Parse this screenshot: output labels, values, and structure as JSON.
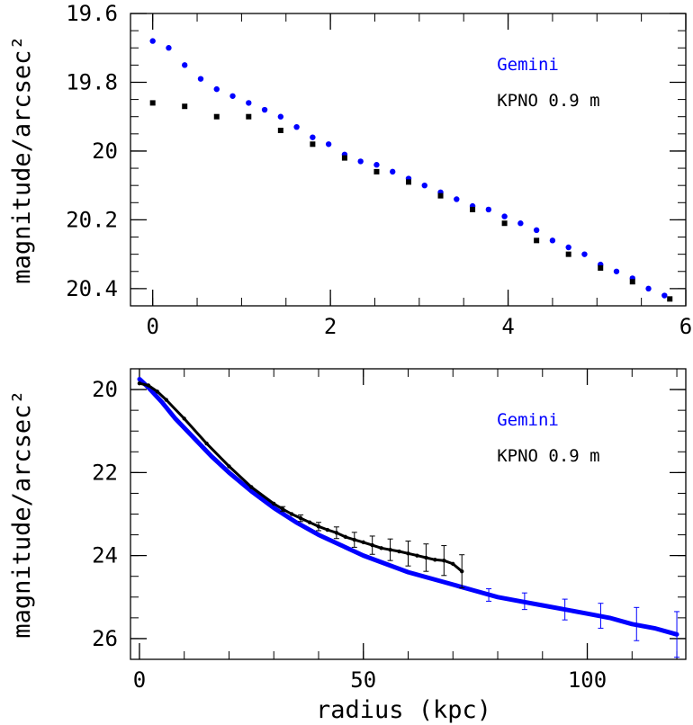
{
  "chart_data": [
    {
      "type": "scatter",
      "title": "",
      "xlabel": "",
      "ylabel": "magnitude/arcsec²",
      "xlim": [
        -0.25,
        6
      ],
      "ylim": [
        19.6,
        20.45
      ],
      "y_inverted": true,
      "x_ticks": [
        "0",
        "2",
        "4",
        "6"
      ],
      "y_ticks": [
        "19.6",
        "19.8",
        "20",
        "20.2",
        "20.4"
      ],
      "grid": false,
      "legend_placement": "top-right",
      "series": [
        {
          "name": "Gemini",
          "color": "#0000ff",
          "marker": "circle",
          "x": [
            0.0,
            0.18,
            0.36,
            0.54,
            0.72,
            0.9,
            1.08,
            1.26,
            1.44,
            1.62,
            1.8,
            1.98,
            2.16,
            2.34,
            2.52,
            2.7,
            2.88,
            3.06,
            3.24,
            3.42,
            3.6,
            3.78,
            3.96,
            4.14,
            4.32,
            4.5,
            4.68,
            4.86,
            5.04,
            5.22,
            5.4,
            5.58,
            5.76
          ],
          "y": [
            19.68,
            19.7,
            19.75,
            19.79,
            19.82,
            19.84,
            19.86,
            19.88,
            19.9,
            19.93,
            19.96,
            19.98,
            20.01,
            20.03,
            20.04,
            20.06,
            20.08,
            20.1,
            20.12,
            20.14,
            20.16,
            20.17,
            20.19,
            20.21,
            20.23,
            20.26,
            20.28,
            20.3,
            20.33,
            20.35,
            20.37,
            20.4,
            20.42
          ]
        },
        {
          "name": "KPNO 0.9 m",
          "color": "#000000",
          "marker": "square",
          "x": [
            0.0,
            0.36,
            0.72,
            1.08,
            1.44,
            1.8,
            2.16,
            2.52,
            2.88,
            3.24,
            3.6,
            3.96,
            4.32,
            4.68,
            5.04,
            5.4,
            5.82
          ],
          "y": [
            19.86,
            19.87,
            19.9,
            19.9,
            19.94,
            19.98,
            20.02,
            20.06,
            20.09,
            20.13,
            20.17,
            20.21,
            20.26,
            20.3,
            20.34,
            20.38,
            20.43
          ]
        }
      ]
    },
    {
      "type": "scatter",
      "title": "",
      "xlabel": "radius (kpc)",
      "ylabel": "magnitude/arcsec²",
      "xlim": [
        -2,
        122
      ],
      "ylim": [
        19.5,
        26.5
      ],
      "y_inverted": true,
      "x_ticks": [
        "0",
        "50",
        "100"
      ],
      "y_ticks": [
        "20",
        "22",
        "24",
        "26"
      ],
      "grid": false,
      "legend_placement": "top-right",
      "series": [
        {
          "name": "Gemini",
          "color": "#0000ff",
          "marker": "circle",
          "x": [
            0,
            2,
            5,
            8,
            12,
            16,
            20,
            25,
            30,
            35,
            40,
            45,
            50,
            55,
            60,
            65,
            70,
            75,
            80,
            85,
            90,
            95,
            100,
            105,
            110,
            115,
            120
          ],
          "y": [
            19.75,
            19.95,
            20.3,
            20.7,
            21.15,
            21.6,
            22.0,
            22.45,
            22.85,
            23.2,
            23.5,
            23.75,
            24.0,
            24.2,
            24.4,
            24.55,
            24.7,
            24.85,
            25.0,
            25.1,
            25.2,
            25.3,
            25.4,
            25.5,
            25.65,
            25.75,
            25.9
          ],
          "error_bars": [
            {
              "x": 78,
              "y": 24.95,
              "err": 0.15
            },
            {
              "x": 86,
              "y": 25.1,
              "err": 0.2
            },
            {
              "x": 95,
              "y": 25.3,
              "err": 0.25
            },
            {
              "x": 103,
              "y": 25.45,
              "err": 0.3
            },
            {
              "x": 111,
              "y": 25.65,
              "err": 0.4
            },
            {
              "x": 120,
              "y": 25.9,
              "err": 0.55
            }
          ]
        },
        {
          "name": "KPNO 0.9 m",
          "color": "#000000",
          "marker": "circle",
          "x": [
            0,
            2,
            4,
            6,
            10,
            15,
            20,
            25,
            30,
            32,
            34,
            36,
            38,
            40,
            42,
            44,
            46,
            48,
            50,
            52,
            54,
            56,
            58,
            60,
            62,
            64,
            66,
            68,
            70,
            72
          ],
          "y": [
            19.85,
            19.9,
            20.05,
            20.25,
            20.7,
            21.3,
            21.85,
            22.35,
            22.75,
            22.88,
            23.0,
            23.1,
            23.2,
            23.3,
            23.38,
            23.45,
            23.55,
            23.62,
            23.68,
            23.75,
            23.82,
            23.86,
            23.9,
            23.95,
            24.0,
            24.05,
            24.1,
            24.12,
            24.2,
            24.38
          ],
          "error_bars": [
            {
              "x": 32,
              "y": 22.88,
              "err": 0.06
            },
            {
              "x": 36,
              "y": 23.1,
              "err": 0.08
            },
            {
              "x": 40,
              "y": 23.3,
              "err": 0.1
            },
            {
              "x": 44,
              "y": 23.45,
              "err": 0.14
            },
            {
              "x": 48,
              "y": 23.62,
              "err": 0.18
            },
            {
              "x": 52,
              "y": 23.75,
              "err": 0.22
            },
            {
              "x": 56,
              "y": 23.86,
              "err": 0.26
            },
            {
              "x": 60,
              "y": 23.95,
              "err": 0.3
            },
            {
              "x": 64,
              "y": 24.05,
              "err": 0.33
            },
            {
              "x": 68,
              "y": 24.12,
              "err": 0.36
            },
            {
              "x": 72,
              "y": 24.38,
              "err": 0.4
            }
          ]
        }
      ]
    }
  ]
}
